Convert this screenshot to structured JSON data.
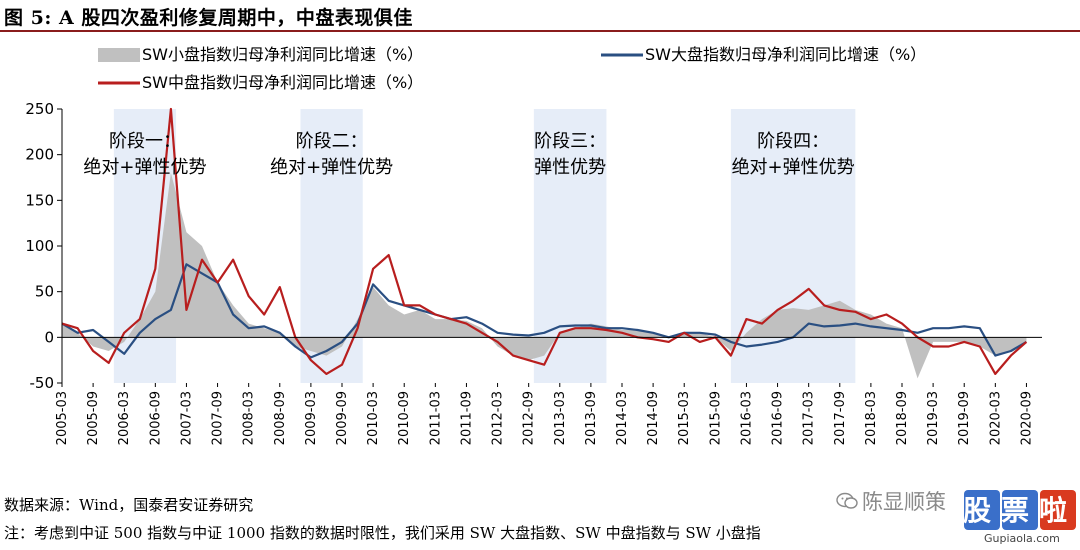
{
  "figure": {
    "title": "图 5:   A 股四次盈利修复周期中，中盘表现俱佳",
    "source": "数据来源：Wind，国泰君安证券研究",
    "note": "注：考虑到中证 500 指数与中证 1000 指数的数据时限性，我们采用 SW 大盘指数、SW 中盘指数与 SW 小盘指",
    "watermark": {
      "name": "陈显顺策",
      "logo": "股票啦",
      "url": "Gupiaola.com"
    }
  },
  "colors": {
    "small": "#c0c0c0",
    "large": "#2a4f82",
    "mid": "#b81e1e",
    "shade": "#e6edf8",
    "rule": "#8a1c1c"
  },
  "chart_data": {
    "type": "area+line",
    "ylim": [
      -50,
      250
    ],
    "yticks": [
      -50,
      0,
      50,
      100,
      150,
      200,
      250
    ],
    "xlim": [
      2005.0,
      2020.75
    ],
    "xtick_labels": [
      "2005-03",
      "2005-09",
      "2006-03",
      "2006-09",
      "2007-03",
      "2007-09",
      "2008-03",
      "2008-09",
      "2009-03",
      "2009-09",
      "2010-03",
      "2010-09",
      "2011-03",
      "2011-09",
      "2012-03",
      "2012-09",
      "2013-03",
      "2013-09",
      "2014-03",
      "2014-09",
      "2015-03",
      "2015-09",
      "2016-03",
      "2016-09",
      "2017-03",
      "2017-09",
      "2018-03",
      "2018-09",
      "2019-03",
      "2019-09",
      "2020-03",
      "2020-09"
    ],
    "legend": [
      {
        "key": "small",
        "name": "SW小盘指数归母净利润同比增速（%）",
        "style": "area"
      },
      {
        "key": "large",
        "name": "SW大盘指数归母净利润同比增速（%）",
        "style": "line"
      },
      {
        "key": "mid",
        "name": "SW中盘指数归母净利润同比增速（%）",
        "style": "line"
      }
    ],
    "phases": [
      {
        "label": "阶段一：",
        "desc": "绝对+弹性优势",
        "start": "2006-01",
        "end": "2007-01"
      },
      {
        "label": "阶段二：",
        "desc": "绝对+弹性优势",
        "start": "2009-01",
        "end": "2010-01"
      },
      {
        "label": "阶段三：",
        "desc": "弹性优势",
        "start": "2012-10",
        "end": "2013-12"
      },
      {
        "label": "阶段四：",
        "desc": "绝对+弹性优势",
        "start": "2015-12",
        "end": "2017-12"
      }
    ],
    "x": [
      "2005-03",
      "2005-06",
      "2005-09",
      "2005-12",
      "2006-03",
      "2006-06",
      "2006-09",
      "2006-12",
      "2007-03",
      "2007-06",
      "2007-09",
      "2007-12",
      "2008-03",
      "2008-06",
      "2008-09",
      "2008-12",
      "2009-03",
      "2009-06",
      "2009-09",
      "2009-12",
      "2010-03",
      "2010-06",
      "2010-09",
      "2010-12",
      "2011-03",
      "2011-06",
      "2011-09",
      "2011-12",
      "2012-03",
      "2012-06",
      "2012-09",
      "2012-12",
      "2013-03",
      "2013-06",
      "2013-09",
      "2013-12",
      "2014-03",
      "2014-06",
      "2014-09",
      "2014-12",
      "2015-03",
      "2015-06",
      "2015-09",
      "2015-12",
      "2016-03",
      "2016-06",
      "2016-09",
      "2016-12",
      "2017-03",
      "2017-06",
      "2017-09",
      "2017-12",
      "2018-03",
      "2018-06",
      "2018-09",
      "2018-12",
      "2019-03",
      "2019-06",
      "2019-09",
      "2019-12",
      "2020-03",
      "2020-06",
      "2020-09"
    ],
    "series": [
      {
        "key": "small",
        "name": "SW小盘指数归母净利润同比增速（%）",
        "values": [
          15,
          5,
          -10,
          -15,
          -5,
          20,
          50,
          180,
          115,
          100,
          60,
          35,
          15,
          10,
          5,
          -10,
          -15,
          -20,
          -10,
          20,
          55,
          35,
          25,
          30,
          20,
          20,
          18,
          10,
          -10,
          -20,
          -25,
          -20,
          5,
          10,
          15,
          12,
          8,
          8,
          5,
          0,
          5,
          5,
          0,
          -15,
          5,
          20,
          30,
          32,
          30,
          35,
          40,
          30,
          25,
          15,
          10,
          -45,
          -5,
          -5,
          -5,
          -10,
          -20,
          -15,
          -5
        ]
      },
      {
        "key": "large",
        "name": "SW大盘指数归母净利润同比增速（%）",
        "values": [
          15,
          5,
          8,
          -5,
          -18,
          5,
          20,
          30,
          80,
          70,
          60,
          25,
          10,
          12,
          5,
          -10,
          -22,
          -15,
          -5,
          15,
          58,
          40,
          35,
          30,
          25,
          20,
          22,
          15,
          5,
          3,
          2,
          5,
          12,
          13,
          13,
          10,
          10,
          8,
          5,
          0,
          5,
          5,
          3,
          -5,
          -10,
          -8,
          -5,
          0,
          15,
          12,
          13,
          15,
          12,
          10,
          8,
          5,
          10,
          10,
          12,
          10,
          -20,
          -15,
          -5
        ]
      },
      {
        "key": "mid",
        "name": "SW中盘指数归母净利润同比增速（%）",
        "values": [
          15,
          10,
          -15,
          -28,
          5,
          20,
          75,
          250,
          30,
          85,
          60,
          85,
          45,
          25,
          55,
          0,
          -25,
          -40,
          -30,
          10,
          75,
          90,
          35,
          35,
          25,
          20,
          15,
          5,
          -5,
          -20,
          -25,
          -30,
          5,
          10,
          10,
          8,
          5,
          0,
          -2,
          -5,
          5,
          -5,
          0,
          -20,
          20,
          15,
          30,
          40,
          53,
          35,
          30,
          28,
          20,
          25,
          15,
          0,
          -10,
          -10,
          -5,
          -10,
          -40,
          -20,
          -5
        ]
      }
    ]
  }
}
